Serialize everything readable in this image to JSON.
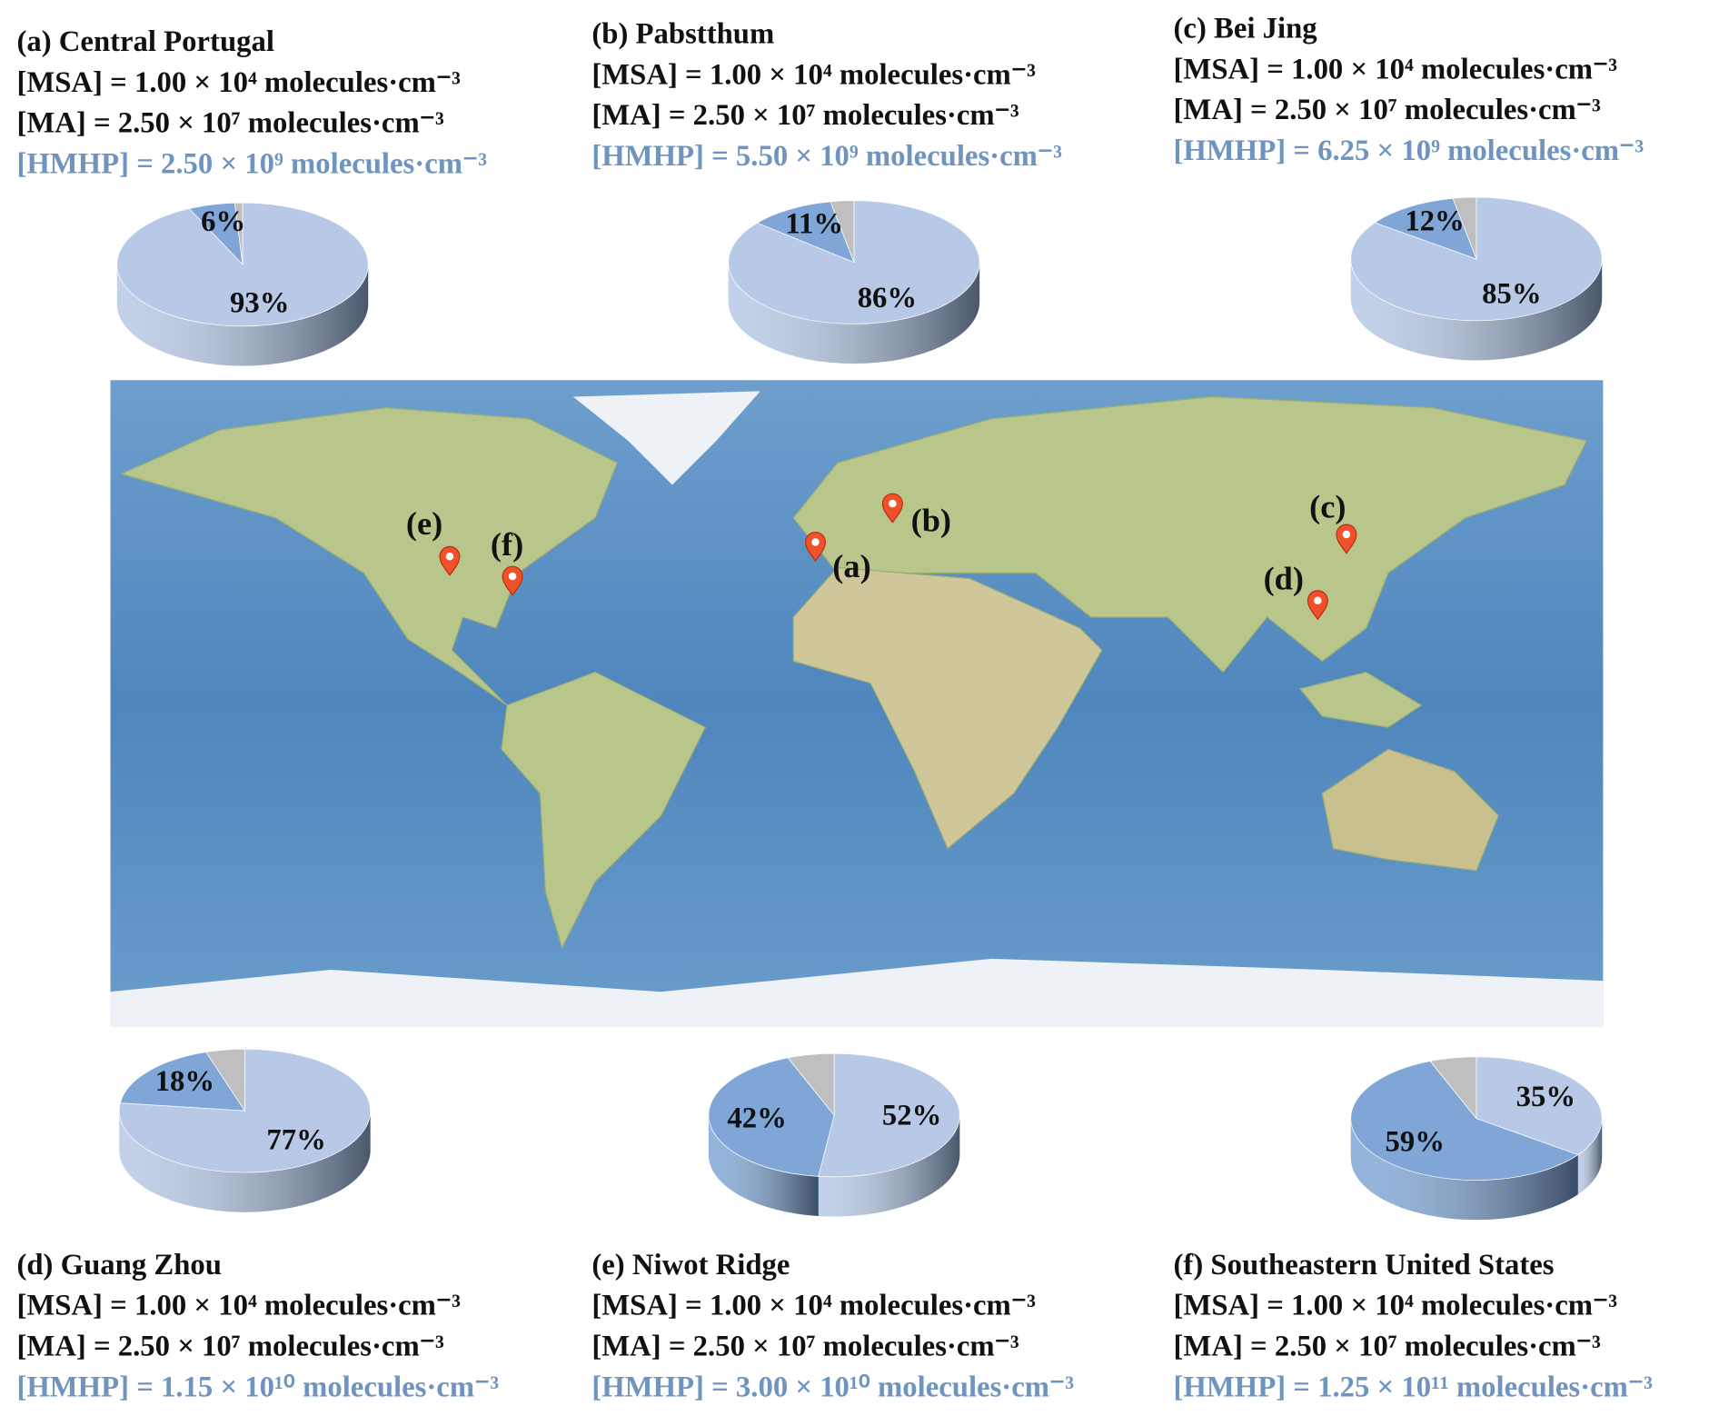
{
  "chart_data": [
    {
      "type": "pie",
      "title": "(a) Central Portugal",
      "annotations": [
        "[MSA] = 1.00 × 10⁴ molecules·cm⁻³",
        "[MA] = 2.50 × 10⁷ molecules·cm⁻³",
        "[HMHP] = 2.50 × 10⁹ molecules·cm⁻³"
      ],
      "values": [
        93,
        6,
        1
      ],
      "value_labels": [
        "93%",
        "6%",
        null
      ],
      "colors": [
        "#b7c9e6",
        "#7fa6d6",
        "#bfbfbf"
      ]
    },
    {
      "type": "pie",
      "title": "(b) Pabstthum",
      "annotations": [
        "[MSA] = 1.00 × 10⁴ molecules·cm⁻³",
        "[MA] = 2.50 × 10⁷ molecules·cm⁻³",
        "[HMHP] = 5.50 × 10⁹ molecules·cm⁻³"
      ],
      "values": [
        86,
        11,
        3
      ],
      "value_labels": [
        "86%",
        "11%",
        null
      ],
      "colors": [
        "#b7c9e6",
        "#7fa6d6",
        "#bfbfbf"
      ]
    },
    {
      "type": "pie",
      "title": "(c) Bei Jing",
      "annotations": [
        "[MSA] = 1.00 × 10⁴ molecules·cm⁻³",
        "[MA] = 2.50 × 10⁷ molecules·cm⁻³",
        "[HMHP] = 6.25 × 10⁹ molecules·cm⁻³"
      ],
      "values": [
        85,
        12,
        3
      ],
      "value_labels": [
        "85%",
        "12%",
        null
      ],
      "colors": [
        "#b7c9e6",
        "#7fa6d6",
        "#bfbfbf"
      ]
    },
    {
      "type": "pie",
      "title": "(d) Guang Zhou",
      "annotations": [
        "[MSA] = 1.00 × 10⁴ molecules·cm⁻³",
        "[MA] = 2.50 × 10⁷ molecules·cm⁻³",
        "[HMHP] = 1.15 × 10¹⁰ molecules·cm⁻³"
      ],
      "values": [
        77,
        18,
        5
      ],
      "value_labels": [
        "77%",
        "18%",
        null
      ],
      "colors": [
        "#b7c9e6",
        "#7fa6d6",
        "#bfbfbf"
      ]
    },
    {
      "type": "pie",
      "title": "(e) Niwot Ridge",
      "annotations": [
        "[MSA] = 1.00 × 10⁴ molecules·cm⁻³",
        "[MA] = 2.50 × 10⁷ molecules·cm⁻³",
        "[HMHP] = 3.00 × 10¹⁰ molecules·cm⁻³"
      ],
      "values": [
        52,
        42,
        6
      ],
      "value_labels": [
        "52%",
        "42%",
        null
      ],
      "colors": [
        "#b7c9e6",
        "#7fa6d6",
        "#bfbfbf"
      ]
    },
    {
      "type": "pie",
      "title": "(f) Southeastern United States",
      "annotations": [
        "[MSA] = 1.00 × 10⁴ molecules·cm⁻³",
        "[MA] = 2.50 × 10⁷ molecules·cm⁻³",
        "[HMHP] = 1.25 × 10¹¹ molecules·cm⁻³"
      ],
      "values": [
        35,
        59,
        6
      ],
      "value_labels": [
        "35%",
        "59%",
        null
      ],
      "colors": [
        "#b7c9e6",
        "#7fa6d6",
        "#bfbfbf"
      ]
    }
  ],
  "map": {
    "markers": [
      {
        "label": "(a)"
      },
      {
        "label": "(b)"
      },
      {
        "label": "(c)"
      },
      {
        "label": "(d)"
      },
      {
        "label": "(e)"
      },
      {
        "label": "(f)"
      }
    ]
  }
}
